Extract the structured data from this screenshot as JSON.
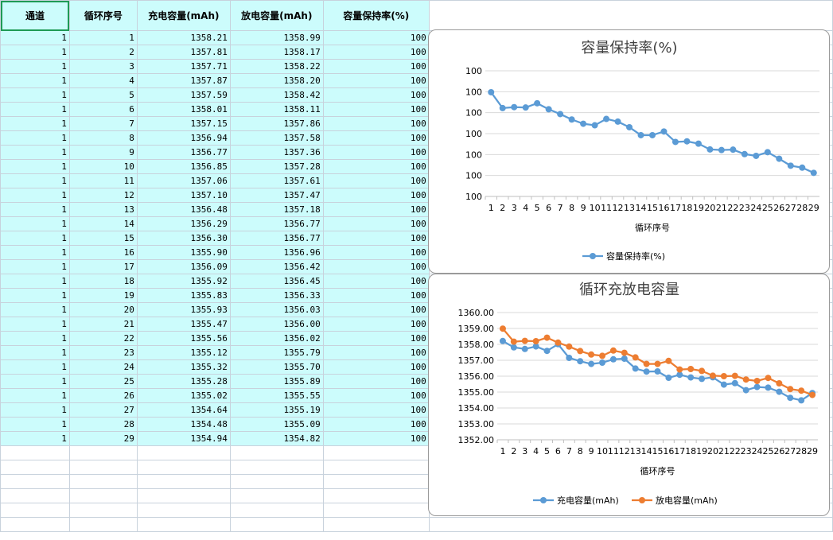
{
  "sheet": {
    "headers": [
      "通道",
      "循环序号",
      "充电容量(mAh)",
      "放电容量(mAh)",
      "容量保持率(%)"
    ],
    "rows": [
      [
        "1",
        "1",
        "1358.21",
        "1358.99",
        "100"
      ],
      [
        "1",
        "2",
        "1357.81",
        "1358.17",
        "100"
      ],
      [
        "1",
        "3",
        "1357.71",
        "1358.22",
        "100"
      ],
      [
        "1",
        "4",
        "1357.87",
        "1358.20",
        "100"
      ],
      [
        "1",
        "5",
        "1357.59",
        "1358.42",
        "100"
      ],
      [
        "1",
        "6",
        "1358.01",
        "1358.11",
        "100"
      ],
      [
        "1",
        "7",
        "1357.15",
        "1357.86",
        "100"
      ],
      [
        "1",
        "8",
        "1356.94",
        "1357.58",
        "100"
      ],
      [
        "1",
        "9",
        "1356.77",
        "1357.36",
        "100"
      ],
      [
        "1",
        "10",
        "1356.85",
        "1357.28",
        "100"
      ],
      [
        "1",
        "11",
        "1357.06",
        "1357.61",
        "100"
      ],
      [
        "1",
        "12",
        "1357.10",
        "1357.47",
        "100"
      ],
      [
        "1",
        "13",
        "1356.48",
        "1357.18",
        "100"
      ],
      [
        "1",
        "14",
        "1356.29",
        "1356.77",
        "100"
      ],
      [
        "1",
        "15",
        "1356.30",
        "1356.77",
        "100"
      ],
      [
        "1",
        "16",
        "1355.90",
        "1356.96",
        "100"
      ],
      [
        "1",
        "17",
        "1356.09",
        "1356.42",
        "100"
      ],
      [
        "1",
        "18",
        "1355.92",
        "1356.45",
        "100"
      ],
      [
        "1",
        "19",
        "1355.83",
        "1356.33",
        "100"
      ],
      [
        "1",
        "20",
        "1355.93",
        "1356.03",
        "100"
      ],
      [
        "1",
        "21",
        "1355.47",
        "1356.00",
        "100"
      ],
      [
        "1",
        "22",
        "1355.56",
        "1356.02",
        "100"
      ],
      [
        "1",
        "23",
        "1355.12",
        "1355.79",
        "100"
      ],
      [
        "1",
        "24",
        "1355.32",
        "1355.70",
        "100"
      ],
      [
        "1",
        "25",
        "1355.28",
        "1355.89",
        "100"
      ],
      [
        "1",
        "26",
        "1355.02",
        "1355.55",
        "100"
      ],
      [
        "1",
        "27",
        "1354.64",
        "1355.19",
        "100"
      ],
      [
        "1",
        "28",
        "1354.48",
        "1355.09",
        "100"
      ],
      [
        "1",
        "29",
        "1354.94",
        "1354.82",
        "100"
      ]
    ]
  },
  "chart_data": [
    {
      "type": "line",
      "title": "容量保持率(%)",
      "xlabel": "循环序号",
      "ylabel": "",
      "x": [
        1,
        2,
        3,
        4,
        5,
        6,
        7,
        8,
        9,
        10,
        11,
        12,
        13,
        14,
        15,
        16,
        17,
        18,
        19,
        20,
        21,
        22,
        23,
        24,
        25,
        26,
        27,
        28,
        29
      ],
      "yticks": [
        "100",
        "100",
        "100",
        "100",
        "100",
        "100",
        "100"
      ],
      "series": [
        {
          "name": "容量保持率(%)",
          "color": "#5b9bd5",
          "values": [
            100,
            100,
            100,
            100,
            100,
            100,
            100,
            100,
            100,
            100,
            100,
            100,
            100,
            100,
            100,
            100,
            100,
            100,
            100,
            100,
            100,
            100,
            100,
            100,
            100,
            100,
            100,
            100,
            100
          ]
        }
      ],
      "grid": true,
      "legend": "bottom"
    },
    {
      "type": "line",
      "title": "循环充放电容量",
      "xlabel": "循环序号",
      "ylabel": "",
      "x": [
        1,
        2,
        3,
        4,
        5,
        6,
        7,
        8,
        9,
        10,
        11,
        12,
        13,
        14,
        15,
        16,
        17,
        18,
        19,
        20,
        21,
        22,
        23,
        24,
        25,
        26,
        27,
        28,
        29
      ],
      "ylim": [
        1352,
        1360
      ],
      "yticks": [
        "1352.00",
        "1353.00",
        "1354.00",
        "1355.00",
        "1356.00",
        "1357.00",
        "1358.00",
        "1359.00",
        "1360.00"
      ],
      "series": [
        {
          "name": "充电容量(mAh)",
          "color": "#5b9bd5",
          "values": [
            1358.21,
            1357.81,
            1357.71,
            1357.87,
            1357.59,
            1358.01,
            1357.15,
            1356.94,
            1356.77,
            1356.85,
            1357.06,
            1357.1,
            1356.48,
            1356.29,
            1356.3,
            1355.9,
            1356.09,
            1355.92,
            1355.83,
            1355.93,
            1355.47,
            1355.56,
            1355.12,
            1355.32,
            1355.28,
            1355.02,
            1354.64,
            1354.48,
            1354.94
          ]
        },
        {
          "name": "放电容量(mAh)",
          "color": "#ed7d31",
          "values": [
            1358.99,
            1358.17,
            1358.22,
            1358.2,
            1358.42,
            1358.11,
            1357.86,
            1357.58,
            1357.36,
            1357.28,
            1357.61,
            1357.47,
            1357.18,
            1356.77,
            1356.77,
            1356.96,
            1356.42,
            1356.45,
            1356.33,
            1356.03,
            1356.0,
            1356.02,
            1355.79,
            1355.7,
            1355.89,
            1355.55,
            1355.19,
            1355.09,
            1354.82
          ]
        }
      ],
      "grid": true,
      "legend": "bottom"
    }
  ]
}
